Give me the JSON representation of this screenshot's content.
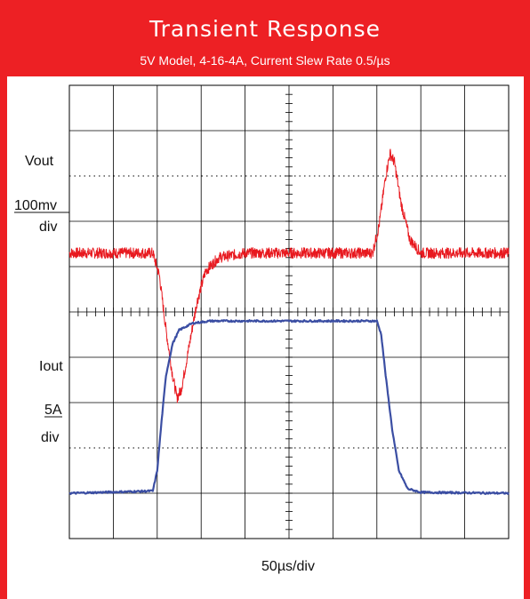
{
  "header": {
    "title": "Transient Response",
    "subtitle": "5V Model, 4-16-4A, Current Slew Rate 0.5/µs"
  },
  "labels": {
    "vout": "Vout",
    "vout_scale": "100mv",
    "vout_div": "div",
    "iout": "Iout",
    "iout_scale": "5A",
    "iout_div": "div",
    "time_scale": "50µs/div"
  },
  "colors": {
    "frame": "#ed2024",
    "vout_trace": "#e8191f",
    "iout_trace": "#3b4ea3",
    "grid": "#000000"
  },
  "chart_data": {
    "type": "line",
    "grid": {
      "x_divisions": 10,
      "y_divisions": 10,
      "dotted_rows": [
        2,
        8
      ]
    },
    "time_per_div_us": 50,
    "series": [
      {
        "name": "Vout",
        "color": "#e8191f",
        "unit": "div",
        "noise_div": 0.12,
        "points": [
          [
            0,
            6.3
          ],
          [
            1.9,
            6.3
          ],
          [
            2.05,
            5.8
          ],
          [
            2.2,
            4.6
          ],
          [
            2.35,
            3.6
          ],
          [
            2.45,
            3.1
          ],
          [
            2.55,
            3.3
          ],
          [
            2.7,
            4.1
          ],
          [
            2.9,
            5.2
          ],
          [
            3.1,
            5.9
          ],
          [
            3.4,
            6.2
          ],
          [
            4,
            6.3
          ],
          [
            6.9,
            6.3
          ],
          [
            7.05,
            6.9
          ],
          [
            7.2,
            8.0
          ],
          [
            7.3,
            8.5
          ],
          [
            7.4,
            8.3
          ],
          [
            7.55,
            7.4
          ],
          [
            7.75,
            6.6
          ],
          [
            8,
            6.3
          ],
          [
            10,
            6.3
          ]
        ]
      },
      {
        "name": "Iout",
        "color": "#3b4ea3",
        "unit": "div",
        "noise_div": 0.02,
        "points": [
          [
            0,
            1
          ],
          [
            1.9,
            1.05
          ],
          [
            2.0,
            1.5
          ],
          [
            2.1,
            2.6
          ],
          [
            2.2,
            3.6
          ],
          [
            2.35,
            4.3
          ],
          [
            2.5,
            4.6
          ],
          [
            2.8,
            4.75
          ],
          [
            3.2,
            4.8
          ],
          [
            7.0,
            4.8
          ],
          [
            7.1,
            4.5
          ],
          [
            7.2,
            3.6
          ],
          [
            7.35,
            2.4
          ],
          [
            7.5,
            1.5
          ],
          [
            7.7,
            1.1
          ],
          [
            8.0,
            1.02
          ],
          [
            10,
            1.0
          ]
        ]
      }
    ]
  }
}
